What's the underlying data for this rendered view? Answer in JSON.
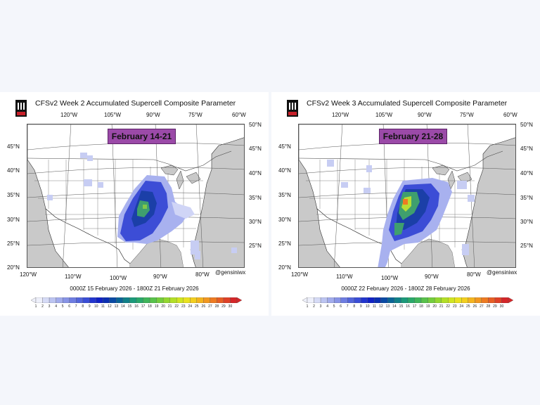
{
  "panels": [
    {
      "title": "CFSv2 Week 2 Accumulated Supercell Composite Parameter",
      "period": "February 14-21",
      "daterange": "0000Z 15  February  2026  - 1800Z 21  February  2026",
      "credit": "@gensiniwx",
      "lon_top": [
        "120°W",
        "105°W",
        "90°W",
        "75°W",
        "60°W"
      ],
      "lon_bottom": [
        "120°W",
        "110°W",
        "100°W",
        "90°W",
        "80°W"
      ],
      "lat_left": [
        "45°N",
        "40°N",
        "35°N",
        "30°N",
        "25°N",
        "20°N"
      ],
      "lat_right": [
        "50°N",
        "45°N",
        "40°N",
        "35°N",
        "30°N",
        "25°N"
      ]
    },
    {
      "title": "CFSv2 Week 3 Accumulated Supercell Composite Parameter",
      "period": "February 21-28",
      "daterange": "0000Z 22  February  2026  - 1800Z 28  February  2026",
      "credit": "@gensiniwx",
      "lon_top": [
        "120°W",
        "105°W",
        "90°W",
        "75°W",
        "60°W"
      ],
      "lon_bottom": [
        "120°W",
        "110°W",
        "100°W",
        "90°W",
        "80°W"
      ],
      "lat_left": [
        "45°N",
        "40°N",
        "35°N",
        "30°N",
        "25°N",
        "20°N"
      ],
      "lat_right": [
        "50°N",
        "45°N",
        "40°N",
        "35°N",
        "30°N",
        "25°N"
      ]
    }
  ],
  "colorbar": {
    "labels": [
      "1",
      "2",
      "3",
      "4",
      "5",
      "6",
      "7",
      "8",
      "9",
      "10",
      "11",
      "12",
      "13",
      "14",
      "15",
      "16",
      "17",
      "18",
      "19",
      "20",
      "21",
      "22",
      "23",
      "24",
      "25",
      "26",
      "27",
      "28",
      "29",
      "30"
    ],
    "colors": [
      "#eef0fb",
      "#d6dbf6",
      "#bcc4f1",
      "#a2acec",
      "#8894e6",
      "#6e7de1",
      "#5365db",
      "#3a4ed6",
      "#2235cf",
      "#1122c4",
      "#0a2fb2",
      "#0a4aa4",
      "#0a6596",
      "#108088",
      "#1b9a7a",
      "#2aa86a",
      "#3fb55a",
      "#58c24b",
      "#74cd3d",
      "#93d730",
      "#b3df27",
      "#d1e521",
      "#e9e21f",
      "#f3cf1f",
      "#f4b41f",
      "#f29820",
      "#ee7b22",
      "#e75e24",
      "#df4126",
      "#d52628"
    ]
  }
}
